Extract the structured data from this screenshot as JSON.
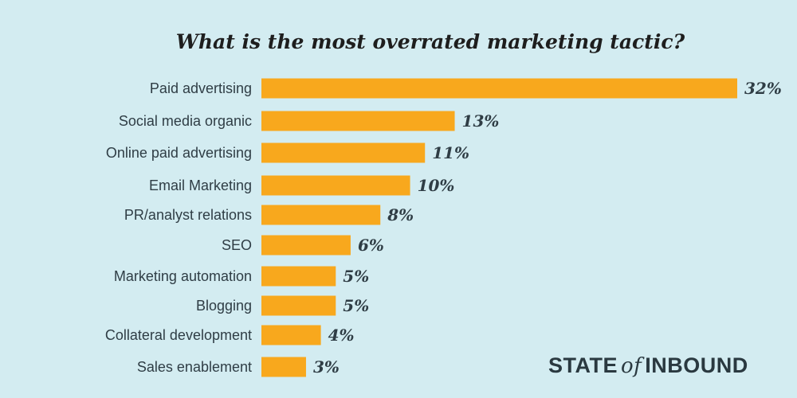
{
  "chart_data": {
    "type": "bar",
    "orientation": "horizontal",
    "title": "What is the most overrated marketing tactic?",
    "categories": [
      "Paid advertising",
      "Social media organic",
      "Online paid advertising",
      "Email Marketing",
      "PR/analyst relations",
      "SEO",
      "Marketing automation",
      "Blogging",
      "Collateral development",
      "Sales enablement"
    ],
    "values": [
      32,
      13,
      11,
      10,
      8,
      6,
      5,
      5,
      4,
      3
    ],
    "value_labels": [
      "32%",
      "13%",
      "11%",
      "10%",
      "8%",
      "6%",
      "5%",
      "5%",
      "4%",
      "3%"
    ],
    "unit": "%",
    "xlabel": "",
    "ylabel": "",
    "xlim": [
      0,
      32
    ],
    "grid": false,
    "legend": "none"
  },
  "branding": {
    "left": "STATE",
    "middle": "of",
    "right": "INBOUND"
  },
  "colors": {
    "background": "#d3ecf1",
    "bar": "#f8a81d",
    "text": "#2f3d45"
  }
}
